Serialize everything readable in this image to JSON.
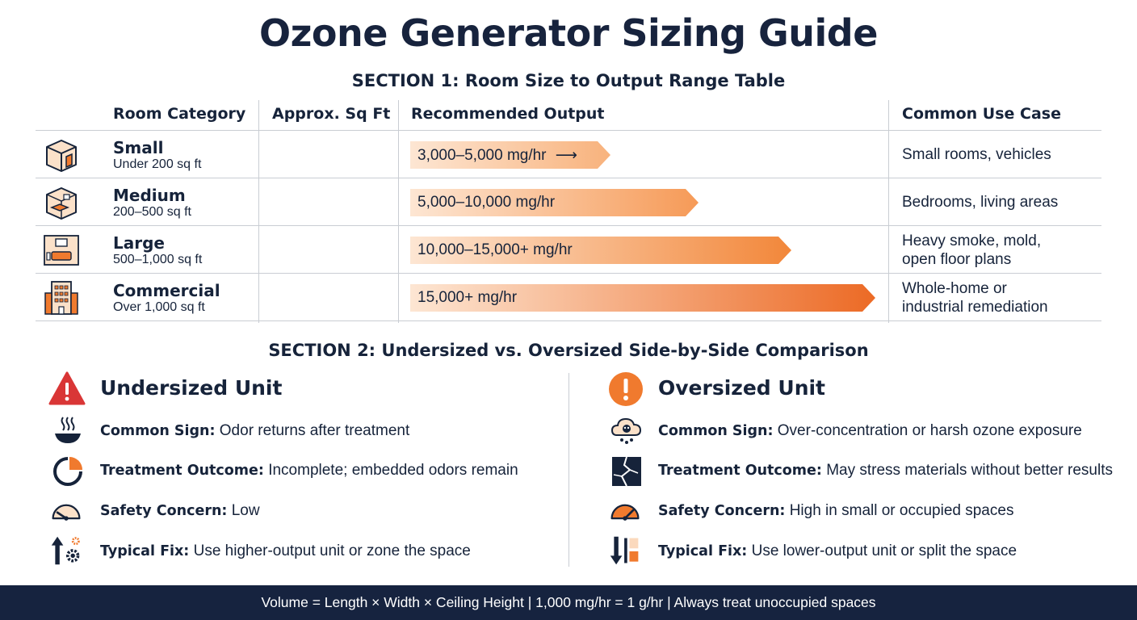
{
  "title": "Ozone Generator Sizing Guide",
  "section1": {
    "title": "SECTION 1: Room Size to Output Range Table",
    "headers": [
      "Room Category",
      "Approx. Sq Ft",
      "Recommended Output",
      "Common Use Case"
    ],
    "rows": [
      {
        "name": "Small",
        "sqft": "Under 200 sq ft",
        "output": "3,000–5,000 mg/hr",
        "output_arrow": "⟶",
        "use": [
          "Small rooms, vehicles"
        ],
        "icon": "box-room-icon",
        "bar_fraction": 0.43
      },
      {
        "name": "Medium",
        "sqft": "200–500 sq ft",
        "output": "5,000–10,000 mg/hr",
        "use": [
          "Bedrooms, living areas"
        ],
        "icon": "room-cube-icon",
        "bar_fraction": 0.62
      },
      {
        "name": "Large",
        "sqft": "500–1,000 sq ft",
        "output": "10,000–15,000+ mg/hr",
        "use": [
          "Heavy smoke, mold,",
          "open floor plans"
        ],
        "icon": "living-room-icon",
        "bar_fraction": 0.82
      },
      {
        "name": "Commercial",
        "sqft": "Over 1,000 sq ft",
        "output": "15,000+ mg/hr",
        "use": [
          "Whole-home or",
          "industrial remediation"
        ],
        "icon": "building-icon",
        "bar_fraction": 1.0
      }
    ]
  },
  "section2": {
    "title": "SECTION 2: Undersized vs. Oversized Side-by-Side Comparison",
    "undersized": {
      "heading": "Undersized Unit",
      "icon": "warning-triangle-icon",
      "items": [
        {
          "label": "Common Sign:",
          "text": " Odor returns after treatment",
          "icon": "steaming-bowl-icon"
        },
        {
          "label": "Treatment Outcome:",
          "text": " Incomplete; embedded odors remain",
          "icon": "partial-circle-icon"
        },
        {
          "label": "Safety Concern:",
          "text": " Low",
          "icon": "gauge-low-icon"
        },
        {
          "label": "Typical Fix:",
          "text": " Use higher-output unit or zone the space",
          "icon": "arrow-up-gears-icon"
        }
      ]
    },
    "oversized": {
      "heading": "Oversized Unit",
      "icon": "exclamation-circle-icon",
      "items": [
        {
          "label": "Common Sign:",
          "text": " Over-concentration or harsh ozone exposure",
          "icon": "skull-cloud-icon"
        },
        {
          "label": "Treatment Outcome:",
          "text": " May stress materials without better results",
          "icon": "cracked-material-icon"
        },
        {
          "label": "Safety Concern:",
          "text": " High in small or occupied spaces",
          "icon": "gauge-high-icon"
        },
        {
          "label": "Typical Fix:",
          "text": " Use lower-output unit or split the space",
          "icon": "arrow-down-split-icon"
        }
      ]
    }
  },
  "footer": "Volume = Length × Width × Ceiling Height  |  1,000 mg/hr = 1 g/hr  |  Always treat unoccupied spaces",
  "colors": {
    "navy": "#16233f",
    "orange": "#f07a2e",
    "orange_light": "#fbd9bd",
    "red": "#d93636",
    "border": "#c9cdd3"
  }
}
